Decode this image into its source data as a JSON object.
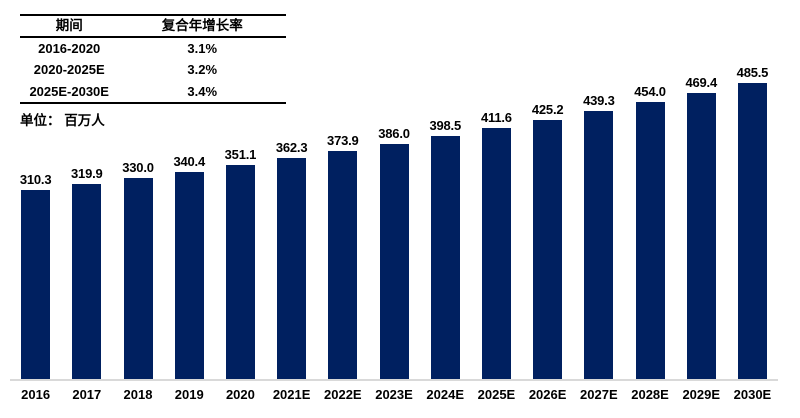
{
  "table": {
    "headers": {
      "period": "期间",
      "cagr": "复合年增长率"
    },
    "rows": [
      {
        "period": "2016-2020",
        "cagr": "3.1%"
      },
      {
        "period": "2020-2025E",
        "cagr": "3.2%"
      },
      {
        "period": "2025E-2030E",
        "cagr": "3.4%"
      }
    ]
  },
  "unit_label": "单位： 百万人",
  "colors": {
    "bar": "#002060",
    "axis_line": "#d9d9d9",
    "text": "#000000"
  },
  "chart_data": {
    "type": "bar",
    "title": "",
    "xlabel": "",
    "ylabel": "单位: 百万人",
    "categories": [
      "2016",
      "2017",
      "2018",
      "2019",
      "2020",
      "2021E",
      "2022E",
      "2023E",
      "2024E",
      "2025E",
      "2026E",
      "2027E",
      "2028E",
      "2029E",
      "2030E"
    ],
    "values": [
      310.3,
      319.9,
      330.0,
      340.4,
      351.1,
      362.3,
      373.9,
      386.0,
      398.5,
      411.6,
      425.2,
      439.3,
      454.0,
      469.4,
      485.5
    ],
    "value_labels_shown": true,
    "value_label_decimals": 1,
    "ylim": [
      0,
      500
    ],
    "grid": false,
    "legend_position": "none",
    "y_axis_shown": false,
    "x_axis_line_shown": true
  }
}
